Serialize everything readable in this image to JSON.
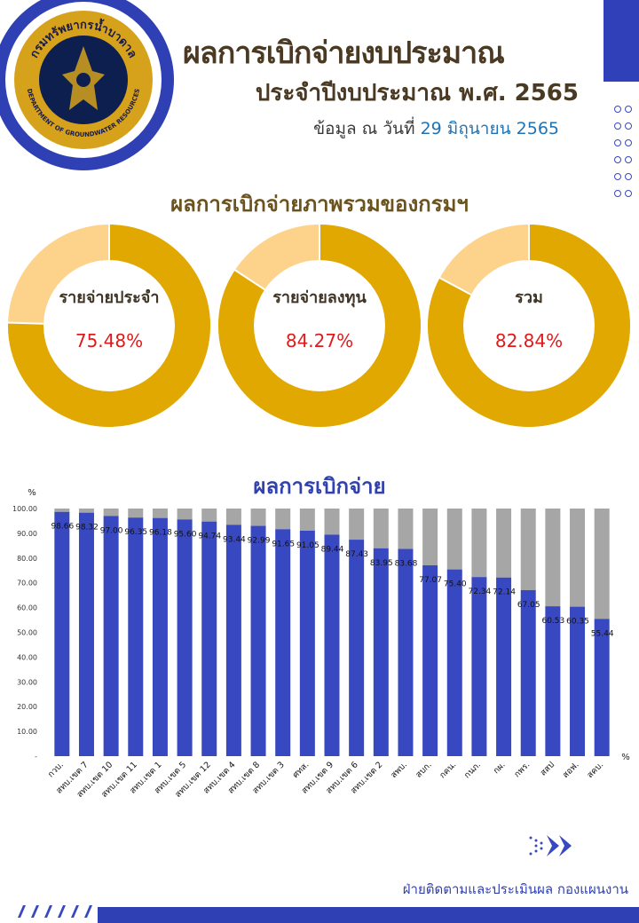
{
  "header": {
    "title": "ผลการเบิกจ่ายงบประมาณ",
    "subtitle": "ประจำปีงบประมาณ พ.ศ. 2565",
    "as_of_label": "ข้อมูล ณ วันที่",
    "as_of_date": "29 มิถุนายน 2565"
  },
  "logo": {
    "top_text": "กรมทรัพยากรน้ำบาดาล",
    "bottom_text": "DEPARTMENT OF GROUNDWATER RESOURCES"
  },
  "overview": {
    "title": "ผลการเบิกจ่ายภาพรวมของกรมฯ",
    "donuts": [
      {
        "label": "รายจ่ายประจำ",
        "value_text": "75.48%",
        "value": 75.48
      },
      {
        "label": "รายจ่ายลงทุน",
        "value_text": "84.27%",
        "value": 84.27
      },
      {
        "label": "รวม",
        "value_text": "82.84%",
        "value": 82.84
      }
    ]
  },
  "colors": {
    "donut_fill": "#e0a800",
    "donut_remainder": "#fdd38c",
    "bar_fill": "#3848c0",
    "bar_remainder": "#a6a6a6",
    "accent": "#2f3fb4"
  },
  "chart_data": {
    "type": "bar",
    "stacked": true,
    "title": "ผลการเบิกจ่าย",
    "ylabel": "%",
    "xlabel": "%",
    "ylim": [
      0,
      100
    ],
    "yticks": [
      "-",
      "10.00",
      "20.00",
      "30.00",
      "40.00",
      "50.00",
      "60.00",
      "70.00",
      "80.00",
      "90.00",
      "100.00"
    ],
    "categories": [
      "กวบ.",
      "สทบ.เขต 7",
      "สทบ.เขต 10",
      "สทบ.เขต 11",
      "สทบ.เขต 1",
      "สทบ.เขต 5",
      "สทบ.เขต 12",
      "สทบ.เขต 4",
      "สทบ.เขต 8",
      "สทบ.เขต 3",
      "ศทส.",
      "สทบ.เขต 9",
      "สทบ.เขต 6",
      "สทบ.เขต 2",
      "สพบ.",
      "สบก.",
      "กคน.",
      "กนภ.",
      "กผ.",
      "กพร.",
      "สสป",
      "สอฟ.",
      "สคบ."
    ],
    "series": [
      {
        "values": [
          98.66,
          98.32,
          97.0,
          96.35,
          96.18,
          95.6,
          94.74,
          93.44,
          92.99,
          91.65,
          91.05,
          89.44,
          87.43,
          83.95,
          83.68,
          77.07,
          75.4,
          72.34,
          72.14,
          67.05,
          60.53,
          60.35,
          55.44
        ],
        "labels": [
          "98.66",
          "98.32",
          "97.00",
          "96.35",
          "96.18",
          "95.60",
          "94.74",
          "93.44",
          "92.99",
          "91.65",
          "91.05",
          "89.44",
          "87.43",
          "83.95",
          "83.68",
          "77.07",
          "75.40",
          "72.34",
          "72.14",
          "67.05",
          "60.53",
          "60.35",
          "55.44"
        ]
      }
    ]
  },
  "footer": {
    "credit": "ฝ่ายติดตามและประเมินผล  กองแผนงาน"
  }
}
